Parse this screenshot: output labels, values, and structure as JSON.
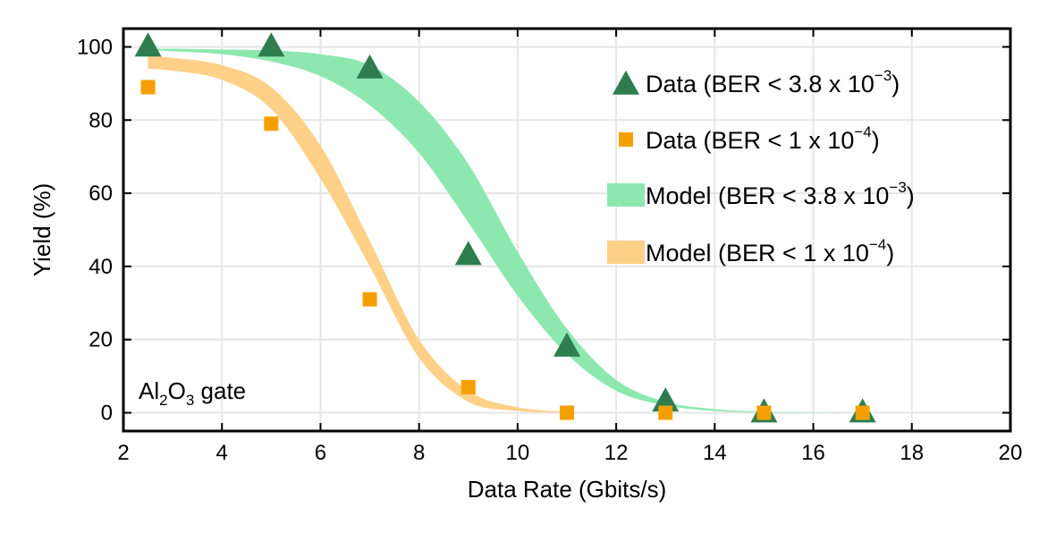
{
  "chart_data": {
    "type": "scatter",
    "title": "",
    "xlabel": "Data Rate (Gbits/s)",
    "ylabel": "Yield (%)",
    "xlim": [
      2,
      20
    ],
    "ylim": [
      -5,
      105
    ],
    "xticks": [
      2,
      4,
      6,
      8,
      10,
      12,
      14,
      16,
      18,
      20
    ],
    "yticks": [
      0,
      20,
      40,
      60,
      80,
      100
    ],
    "grid": true,
    "legend_position": "top-right",
    "annotation": {
      "base": "Al",
      "sub1": "2",
      "mid": "O",
      "sub2": "3",
      "rest": " gate"
    },
    "series": [
      {
        "name": "Data (BER < 3.8 x 10^-3)",
        "legend": {
          "text": "Data (BER < 3.8 x 10",
          "exp": "−3",
          "close": ")"
        },
        "kind": "scatter",
        "marker": "triangle",
        "color": "#2e7d4f",
        "x": [
          2.5,
          5,
          7,
          9,
          11,
          13,
          15,
          17
        ],
        "y": [
          100,
          100,
          94,
          43,
          18,
          3,
          0,
          0
        ]
      },
      {
        "name": "Data (BER < 1 x 10^-4)",
        "legend": {
          "text": "Data (BER < 1 x 10",
          "exp": "−4",
          "close": ")"
        },
        "kind": "scatter",
        "marker": "square",
        "color": "#f5a000",
        "x": [
          2.5,
          5,
          7,
          9,
          11,
          13,
          15,
          17
        ],
        "y": [
          89,
          79,
          31,
          7,
          0,
          0,
          0,
          0
        ]
      },
      {
        "name": "Model (BER < 3.8 x 10^-3)",
        "legend": {
          "text": "Model (BER < 3.8 x 10",
          "exp": "−3",
          "close": ")"
        },
        "kind": "band",
        "color": "#8de8b0",
        "x": [
          2.5,
          3,
          4,
          5,
          6,
          7,
          8,
          9,
          10,
          11,
          12,
          13,
          14,
          15,
          16,
          17
        ],
        "upper": [
          99.5,
          99.5,
          99.3,
          99,
          98,
          95,
          85,
          68,
          44,
          23,
          9,
          3,
          1,
          0.3,
          0.1,
          0
        ],
        "lower": [
          99,
          98.8,
          98,
          96,
          92,
          84,
          71,
          52,
          32,
          16,
          6,
          2,
          0.5,
          0.1,
          0,
          0
        ]
      },
      {
        "name": "Model (BER < 1 x 10^-4)",
        "legend": {
          "text": "Model (BER < 1 x 10",
          "exp": "−4",
          "close": ")"
        },
        "kind": "band",
        "color": "#ffd088",
        "x": [
          2.5,
          3,
          4,
          5,
          6,
          7,
          8,
          9,
          10,
          11
        ],
        "upper": [
          97.5,
          97,
          95,
          89,
          73,
          47,
          20,
          6,
          1.5,
          0.2
        ],
        "lower": [
          94,
          93.5,
          91,
          83,
          64,
          40,
          15,
          3,
          0.5,
          0
        ]
      }
    ]
  }
}
